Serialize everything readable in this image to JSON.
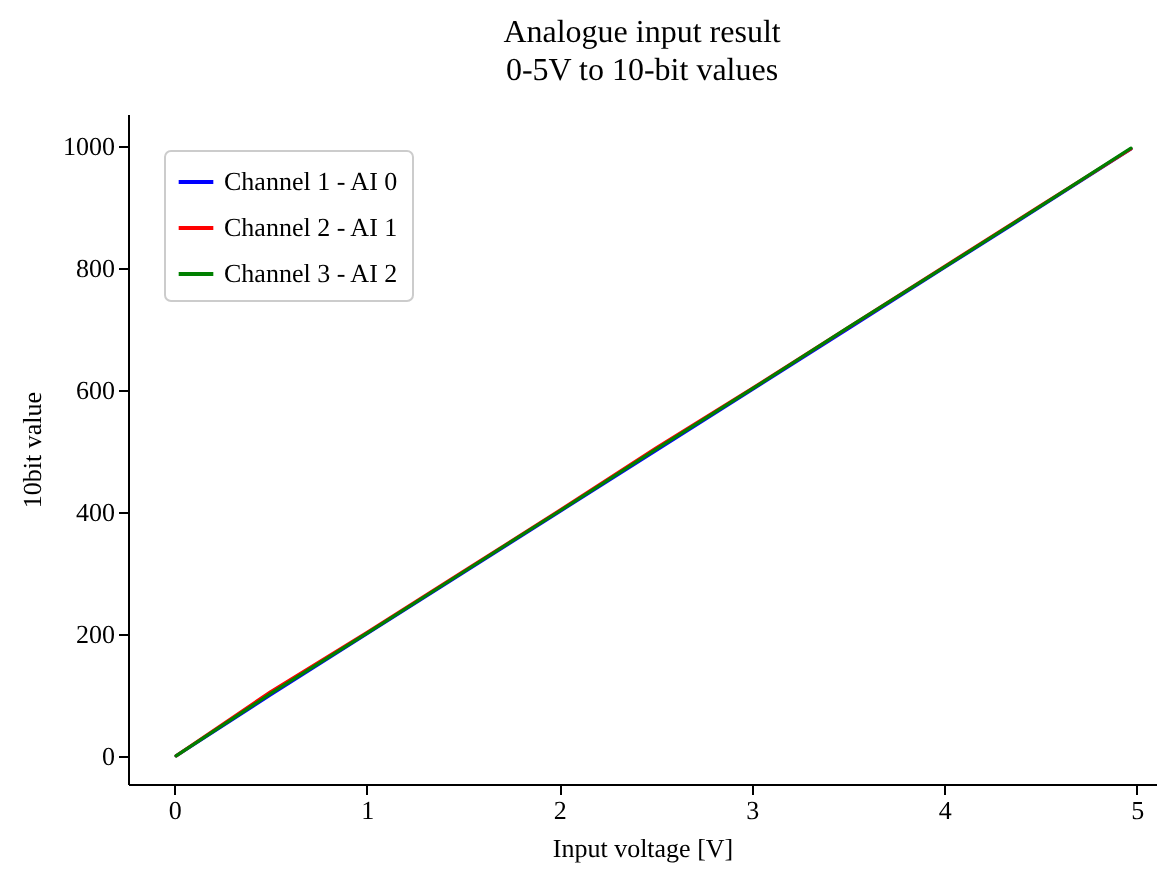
{
  "chart_data": {
    "type": "line",
    "title": "Analogue input result",
    "subtitle": "0-5V to 10-bit values",
    "xlabel": "Input voltage [V]",
    "ylabel": "10bit value",
    "x": [
      0.01,
      0.5,
      1,
      1.5,
      2,
      2.5,
      3,
      3.5,
      4,
      4.5,
      4.97
    ],
    "series": [
      {
        "name": "Channel 1 - AI 0",
        "color": "#0000ff",
        "values": [
          0,
          100,
          200,
          300,
          400,
          500,
          600,
          700,
          800,
          900,
          995
        ]
      },
      {
        "name": "Channel 2 - AI 1",
        "color": "#ff0000",
        "values": [
          0,
          105,
          202,
          302,
          402,
          504,
          602,
          702,
          802,
          902,
          995
        ]
      },
      {
        "name": "Channel 3 - AI 2",
        "color": "#008000",
        "values": [
          0,
          102,
          201,
          301,
          401,
          502,
          601,
          702,
          801,
          901,
          996
        ]
      }
    ],
    "xlim": [
      -0.24,
      5.1
    ],
    "xticks": [
      0,
      1,
      2,
      3,
      4,
      5
    ],
    "ylim": [
      -46,
      1052
    ],
    "yticks": [
      0,
      200,
      400,
      600,
      800,
      1000
    ],
    "grid": false,
    "legend": "top left",
    "line_style": "solid",
    "marker": "none"
  }
}
